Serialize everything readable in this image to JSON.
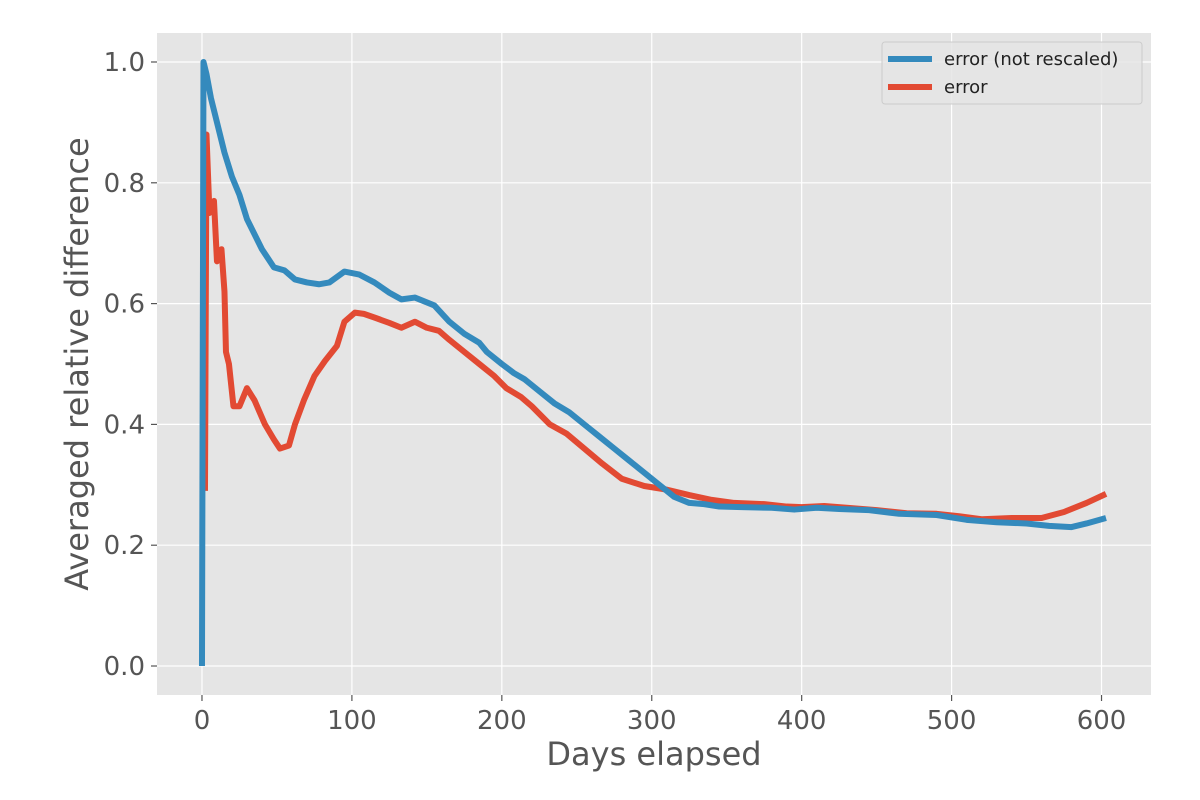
{
  "chart_data": {
    "type": "line",
    "title": "",
    "xlabel": "Days elapsed",
    "ylabel": "Averaged relative difference",
    "xlim": [
      -30,
      633
    ],
    "ylim": [
      -0.048,
      1.048
    ],
    "xticks": [
      0,
      100,
      200,
      300,
      400,
      500,
      600
    ],
    "xtick_labels": [
      "0",
      "100",
      "200",
      "300",
      "400",
      "500",
      "600"
    ],
    "yticks": [
      0.0,
      0.2,
      0.4,
      0.6,
      0.8,
      1.0
    ],
    "ytick_labels": [
      "0.0",
      "0.2",
      "0.4",
      "0.6",
      "0.8",
      "1.0"
    ],
    "grid": true,
    "legend_position": "top-right",
    "series": [
      {
        "name": "error (not rescaled)",
        "color": "#348ABD",
        "points": [
          [
            0,
            0.0
          ],
          [
            1,
            1.0
          ],
          [
            3,
            0.98
          ],
          [
            6,
            0.94
          ],
          [
            10,
            0.9
          ],
          [
            15,
            0.85
          ],
          [
            20,
            0.81
          ],
          [
            25,
            0.78
          ],
          [
            30,
            0.74
          ],
          [
            40,
            0.69
          ],
          [
            48,
            0.66
          ],
          [
            55,
            0.655
          ],
          [
            62,
            0.64
          ],
          [
            70,
            0.635
          ],
          [
            78,
            0.632
          ],
          [
            85,
            0.635
          ],
          [
            95,
            0.653
          ],
          [
            105,
            0.648
          ],
          [
            115,
            0.635
          ],
          [
            125,
            0.618
          ],
          [
            133,
            0.607
          ],
          [
            142,
            0.61
          ],
          [
            148,
            0.604
          ],
          [
            155,
            0.597
          ],
          [
            165,
            0.57
          ],
          [
            175,
            0.55
          ],
          [
            185,
            0.535
          ],
          [
            190,
            0.52
          ],
          [
            200,
            0.5
          ],
          [
            208,
            0.485
          ],
          [
            215,
            0.475
          ],
          [
            225,
            0.455
          ],
          [
            235,
            0.435
          ],
          [
            245,
            0.42
          ],
          [
            255,
            0.4
          ],
          [
            265,
            0.38
          ],
          [
            275,
            0.36
          ],
          [
            285,
            0.34
          ],
          [
            295,
            0.32
          ],
          [
            305,
            0.3
          ],
          [
            315,
            0.28
          ],
          [
            325,
            0.27
          ],
          [
            335,
            0.268
          ],
          [
            345,
            0.264
          ],
          [
            360,
            0.263
          ],
          [
            380,
            0.262
          ],
          [
            395,
            0.259
          ],
          [
            410,
            0.262
          ],
          [
            425,
            0.26
          ],
          [
            445,
            0.258
          ],
          [
            465,
            0.252
          ],
          [
            490,
            0.25
          ],
          [
            510,
            0.242
          ],
          [
            530,
            0.238
          ],
          [
            550,
            0.236
          ],
          [
            565,
            0.232
          ],
          [
            580,
            0.23
          ],
          [
            590,
            0.236
          ],
          [
            603,
            0.245
          ]
        ]
      },
      {
        "name": "error",
        "color": "#E24A33",
        "points": [
          [
            2,
            0.29
          ],
          [
            3,
            0.88
          ],
          [
            5,
            0.75
          ],
          [
            8,
            0.77
          ],
          [
            10,
            0.67
          ],
          [
            13,
            0.69
          ],
          [
            15,
            0.62
          ],
          [
            16,
            0.52
          ],
          [
            18,
            0.5
          ],
          [
            21,
            0.43
          ],
          [
            25,
            0.43
          ],
          [
            30,
            0.46
          ],
          [
            35,
            0.44
          ],
          [
            42,
            0.4
          ],
          [
            48,
            0.375
          ],
          [
            52,
            0.36
          ],
          [
            58,
            0.365
          ],
          [
            62,
            0.4
          ],
          [
            68,
            0.44
          ],
          [
            75,
            0.48
          ],
          [
            82,
            0.505
          ],
          [
            90,
            0.53
          ],
          [
            95,
            0.57
          ],
          [
            102,
            0.585
          ],
          [
            108,
            0.583
          ],
          [
            115,
            0.577
          ],
          [
            125,
            0.568
          ],
          [
            133,
            0.56
          ],
          [
            142,
            0.57
          ],
          [
            150,
            0.56
          ],
          [
            158,
            0.555
          ],
          [
            165,
            0.54
          ],
          [
            175,
            0.52
          ],
          [
            185,
            0.5
          ],
          [
            195,
            0.48
          ],
          [
            203,
            0.46
          ],
          [
            213,
            0.445
          ],
          [
            220,
            0.43
          ],
          [
            232,
            0.4
          ],
          [
            243,
            0.385
          ],
          [
            255,
            0.36
          ],
          [
            267,
            0.335
          ],
          [
            280,
            0.31
          ],
          [
            295,
            0.298
          ],
          [
            310,
            0.292
          ],
          [
            325,
            0.283
          ],
          [
            340,
            0.275
          ],
          [
            355,
            0.27
          ],
          [
            375,
            0.268
          ],
          [
            390,
            0.264
          ],
          [
            400,
            0.263
          ],
          [
            415,
            0.265
          ],
          [
            430,
            0.262
          ],
          [
            450,
            0.258
          ],
          [
            470,
            0.253
          ],
          [
            490,
            0.252
          ],
          [
            505,
            0.248
          ],
          [
            520,
            0.243
          ],
          [
            540,
            0.245
          ],
          [
            560,
            0.245
          ],
          [
            575,
            0.255
          ],
          [
            590,
            0.27
          ],
          [
            603,
            0.285
          ]
        ]
      }
    ]
  }
}
